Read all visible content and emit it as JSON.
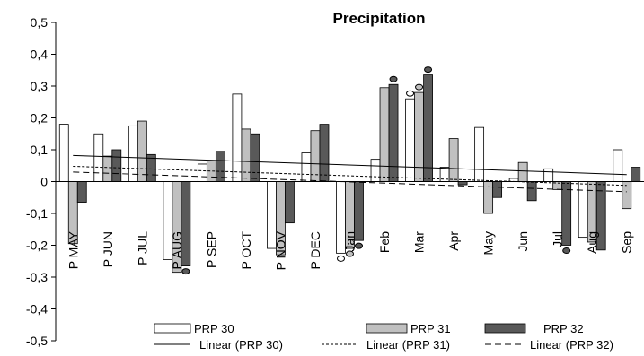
{
  "chart_data": {
    "type": "bar",
    "title": "Precipitation",
    "xlabel": "",
    "ylabel": "",
    "ylim": [
      -0.5,
      0.5
    ],
    "y_ticks": [
      "-0,5",
      "-0,4",
      "-0,3",
      "-0,2",
      "-0,1",
      "0",
      "0,1",
      "0,2",
      "0,3",
      "0,4",
      "0,5"
    ],
    "categories": [
      "P MAY",
      "P JUN",
      "P JUL",
      "P AUG",
      "P SEP",
      "P OCT",
      "P NOV",
      "P DEC",
      "Jan",
      "Feb",
      "Mar",
      "Apr",
      "May",
      "Jun",
      "Jul",
      "Aug",
      "Sep"
    ],
    "series": [
      {
        "name": "PRP 30",
        "color": "#ffffff",
        "values": [
          0.18,
          0.15,
          0.175,
          -0.245,
          0.055,
          0.275,
          -0.21,
          0.09,
          -0.225,
          0.07,
          0.26,
          0.045,
          0.17,
          0.01,
          0.04,
          -0.175,
          0.1
        ],
        "significant": [
          false,
          false,
          false,
          false,
          false,
          false,
          false,
          false,
          true,
          false,
          true,
          false,
          false,
          false,
          false,
          false,
          false
        ]
      },
      {
        "name": "PRP 31",
        "color": "#c0c0c0",
        "values": [
          -0.195,
          0.08,
          0.19,
          -0.285,
          0.065,
          0.165,
          -0.23,
          0.16,
          -0.21,
          0.295,
          0.28,
          0.135,
          -0.1,
          0.06,
          -0.025,
          -0.19,
          -0.085
        ],
        "significant": [
          false,
          false,
          false,
          false,
          false,
          false,
          false,
          false,
          true,
          false,
          true,
          false,
          false,
          false,
          false,
          false,
          false
        ]
      },
      {
        "name": "PRP 32",
        "color": "#595959",
        "values": [
          -0.065,
          0.1,
          0.085,
          -0.265,
          0.095,
          0.15,
          -0.13,
          0.18,
          -0.185,
          0.305,
          0.335,
          -0.01,
          -0.05,
          -0.06,
          -0.2,
          -0.215,
          0.045
        ],
        "significant": [
          false,
          false,
          false,
          true,
          false,
          false,
          false,
          false,
          true,
          true,
          true,
          false,
          false,
          false,
          true,
          false,
          false
        ]
      }
    ],
    "trendlines": [
      {
        "name": "Linear (PRP 30)",
        "style": "solid",
        "start": 0.082,
        "end": 0.022
      },
      {
        "name": "Linear (PRP 31)",
        "style": "dotted",
        "start": 0.048,
        "end": -0.012
      },
      {
        "name": "Linear (PRP 32)",
        "style": "dashed",
        "start": 0.03,
        "end": -0.032
      }
    ],
    "legend": {
      "position": "bottom",
      "entries": [
        "PRP 30",
        "PRP 31",
        "PRP 32",
        "Linear (PRP 30)",
        "Linear (PRP 31)",
        "Linear (PRP 32)"
      ]
    },
    "grid": false
  }
}
